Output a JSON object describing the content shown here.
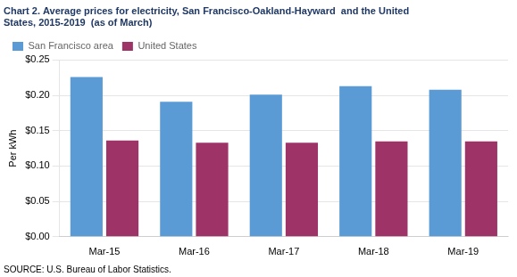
{
  "chart_data": {
    "type": "bar",
    "title": [
      "Chart 2. Average prices for electricity, San Francisco-Oakland-Hayward  and the United",
      "States, 2015-2019  (as of March)"
    ],
    "title_color": "#1F3864",
    "y_label": "Per kWh",
    "annotations": [
      "SOURCE: U.S. Bureau of Labor Statistics."
    ],
    "categories": [
      "Mar-15",
      "Mar-16",
      "Mar-17",
      "Mar-18",
      "Mar-19"
    ],
    "series": [
      {
        "name": "San Francisco area",
        "color": "#5B9BD5",
        "values": [
          0.226,
          0.191,
          0.201,
          0.213,
          0.208
        ]
      },
      {
        "name": "United States",
        "color": "#9E3368",
        "values": [
          0.136,
          0.133,
          0.133,
          0.135,
          0.135
        ]
      }
    ],
    "ylim": [
      0,
      0.25
    ],
    "yticks": [
      {
        "value": 0.0,
        "label": "$0.00"
      },
      {
        "value": 0.05,
        "label": "$0.05"
      },
      {
        "value": 0.1,
        "label": "$0.10"
      },
      {
        "value": 0.15,
        "label": "$0.15"
      },
      {
        "value": 0.2,
        "label": "$0.20"
      },
      {
        "value": 0.25,
        "label": "$0.25"
      }
    ],
    "grid": true,
    "legend": "upper left"
  }
}
